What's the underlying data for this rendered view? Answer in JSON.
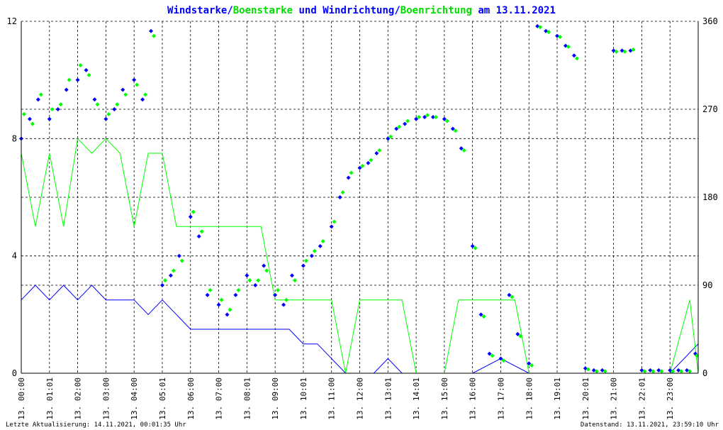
{
  "title": {
    "part1": "Windstarke",
    "sep1": "/",
    "part2": "Boenstarke",
    "part3": " und ",
    "part4": "Windrichtung",
    "sep2": "/",
    "part5": "Boenrichtung",
    "part6": " am 13.11.2021"
  },
  "colors": {
    "blue": "#0000ff",
    "green": "#00ff00",
    "title_blue": "#0000ff",
    "title_green": "#00ee00"
  },
  "footer": {
    "left": "Letzte Aktualisierung: 14.11.2021, 00:01:35 Uhr",
    "right": "Datenstand: 13.11.2021, 23:59:10 Uhr"
  },
  "chart_data": {
    "type": "line",
    "x_ticks": [
      "13. 00:00",
      "13. 01:01",
      "13. 02:00",
      "13. 03:00",
      "13. 04:00",
      "13. 05:01",
      "13. 06:00",
      "13. 07:00",
      "13. 08:01",
      "13. 09:00",
      "13. 10:01",
      "13. 11:00",
      "13. 12:00",
      "13. 13:01",
      "13. 14:01",
      "13. 15:00",
      "13. 16:00",
      "13. 17:00",
      "13. 18:00",
      "13. 19:01",
      "13. 20:01",
      "13. 21:00",
      "13. 22:01",
      "13. 23:00"
    ],
    "left_axis": {
      "ylim": [
        0,
        12
      ],
      "ticks": [
        "0",
        "4",
        "8",
        "12"
      ]
    },
    "right_axis": {
      "ylim": [
        0,
        360
      ],
      "ticks": [
        "0",
        "90",
        "180",
        "270",
        "360"
      ]
    },
    "grid": true,
    "series": [
      {
        "name": "Windstarke",
        "axis": "left",
        "style": "line",
        "color": "#0000ff",
        "hours": [
          0,
          0.5,
          1,
          1.5,
          2,
          2.5,
          3,
          3.5,
          4,
          4.5,
          5,
          5.5,
          6,
          6.5,
          7,
          7.5,
          8,
          8.5,
          9,
          9.5,
          10,
          10.5,
          11,
          11.5,
          12,
          12.5,
          13,
          13.5,
          14,
          15,
          16,
          17,
          18,
          19,
          20,
          21,
          22,
          23,
          24
        ],
        "values": [
          2.5,
          3,
          2.5,
          3,
          2.5,
          3,
          2.5,
          2.5,
          2.5,
          2,
          2.5,
          2,
          1.5,
          1.5,
          1.5,
          1.5,
          1.5,
          1.5,
          1.5,
          1.5,
          1,
          1,
          0.5,
          0,
          0,
          0,
          0.5,
          0,
          0,
          0,
          0,
          0.5,
          0,
          0,
          0,
          0,
          0,
          0,
          1
        ]
      },
      {
        "name": "Boenstarke",
        "axis": "left",
        "style": "line",
        "color": "#00ff00",
        "hours": [
          0,
          0.5,
          1,
          1.5,
          2,
          2.5,
          3,
          3.5,
          4,
          4.5,
          5,
          5.5,
          6,
          6.5,
          7,
          7.5,
          8,
          8.5,
          9,
          9.5,
          10,
          10.5,
          11,
          11.5,
          12,
          12.5,
          13,
          13.5,
          14,
          15,
          15.5,
          16,
          16.5,
          17,
          17.5,
          18,
          19,
          20,
          21,
          22,
          23,
          23.7,
          24
        ],
        "values": [
          7.5,
          5,
          7.5,
          5,
          8,
          7.5,
          8,
          7.5,
          5,
          7.5,
          7.5,
          5,
          5,
          5,
          5,
          5,
          5,
          5,
          2.5,
          2.5,
          2.5,
          2.5,
          2.5,
          0,
          2.5,
          2.5,
          2.5,
          2.5,
          0,
          0,
          2.5,
          2.5,
          2.5,
          2.5,
          2.5,
          0,
          0,
          0,
          0,
          0,
          0,
          2.5,
          0
        ]
      },
      {
        "name": "Windrichtung",
        "axis": "right",
        "style": "points",
        "color": "#0000ff",
        "hours": [
          0,
          0.3,
          0.6,
          1,
          1.3,
          1.6,
          2,
          2.3,
          2.6,
          3,
          3.3,
          3.6,
          4,
          4.3,
          4.6,
          5,
          5.3,
          5.6,
          6,
          6.3,
          6.6,
          7,
          7.3,
          7.6,
          8,
          8.3,
          8.6,
          9,
          9.3,
          9.6,
          10,
          10.3,
          10.6,
          11,
          11.3,
          11.6,
          12,
          12.3,
          12.6,
          13,
          13.3,
          13.6,
          14,
          14.3,
          14.6,
          15,
          15.3,
          15.6,
          16,
          16.3,
          16.6,
          17,
          17.3,
          17.6,
          18,
          18.3,
          18.6,
          19,
          19.3,
          19.6,
          20,
          20.3,
          20.6,
          21,
          21.3,
          21.6,
          22,
          22.3,
          22.6,
          23,
          23.3,
          23.6,
          23.9
        ],
        "values": [
          240,
          260,
          280,
          260,
          270,
          290,
          300,
          310,
          280,
          260,
          270,
          290,
          300,
          280,
          350,
          90,
          100,
          120,
          160,
          140,
          80,
          70,
          60,
          80,
          100,
          90,
          110,
          80,
          70,
          100,
          110,
          120,
          130,
          150,
          180,
          200,
          210,
          215,
          225,
          240,
          250,
          255,
          260,
          262,
          262,
          260,
          250,
          230,
          130,
          60,
          20,
          15,
          80,
          40,
          10,
          355,
          350,
          345,
          335,
          325,
          5,
          3,
          3,
          330,
          330,
          330,
          3,
          3,
          3,
          3,
          3,
          3,
          20
        ]
      },
      {
        "name": "Boenrichtung",
        "axis": "right",
        "style": "points",
        "color": "#00ff00",
        "hours": [
          0.1,
          0.4,
          0.7,
          1.1,
          1.4,
          1.7,
          2.1,
          2.4,
          2.7,
          3.1,
          3.4,
          3.7,
          4.1,
          4.4,
          4.7,
          5.1,
          5.4,
          5.7,
          6.1,
          6.4,
          6.7,
          7.1,
          7.4,
          7.7,
          8.1,
          8.4,
          8.7,
          9.1,
          9.4,
          9.7,
          10.1,
          10.4,
          10.7,
          11.1,
          11.4,
          11.7,
          12.1,
          12.4,
          12.7,
          13.1,
          13.4,
          13.7,
          14.1,
          14.4,
          14.7,
          15.1,
          15.4,
          15.7,
          16.1,
          16.4,
          16.7,
          17.1,
          17.4,
          17.7,
          18.1,
          18.4,
          18.7,
          19.1,
          19.4,
          19.7,
          20.1,
          20.4,
          20.7,
          21.1,
          21.4,
          21.7,
          22.1,
          22.4,
          22.7,
          23.1,
          23.4,
          23.7,
          23.95
        ],
        "values": [
          265,
          255,
          285,
          270,
          275,
          300,
          315,
          305,
          275,
          265,
          275,
          285,
          295,
          285,
          345,
          95,
          105,
          115,
          165,
          145,
          85,
          75,
          65,
          85,
          95,
          95,
          105,
          85,
          75,
          95,
          115,
          125,
          135,
          155,
          185,
          205,
          212,
          218,
          228,
          242,
          252,
          258,
          262,
          264,
          262,
          258,
          248,
          228,
          128,
          58,
          18,
          13,
          78,
          38,
          8,
          354,
          349,
          344,
          334,
          322,
          4,
          2,
          2,
          329,
          329,
          331,
          2,
          2,
          2,
          2,
          2,
          2,
          18
        ]
      }
    ]
  }
}
